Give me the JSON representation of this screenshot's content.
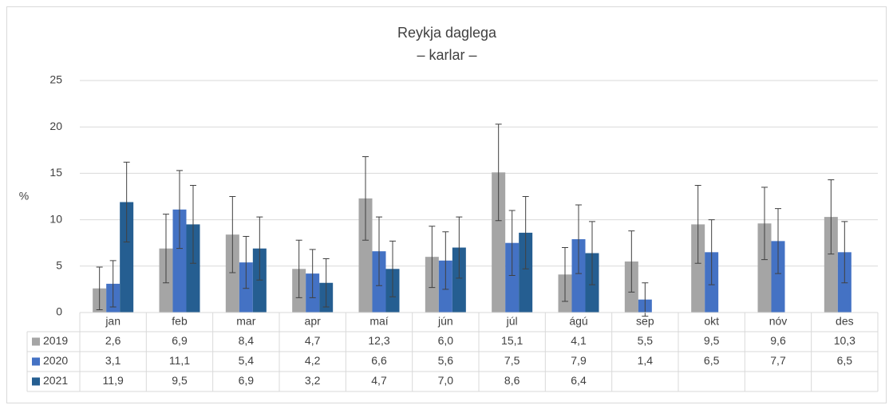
{
  "chart_data": {
    "type": "bar",
    "title": "Reykja daglega",
    "subtitle": "– karlar –",
    "y_label": "%",
    "categories": [
      "jan",
      "feb",
      "mar",
      "apr",
      "maí",
      "jún",
      "júl",
      "ágú",
      "sep",
      "okt",
      "nóv",
      "des"
    ],
    "series": [
      {
        "name": "2019",
        "color": "#a5a5a5",
        "values": [
          2.6,
          6.9,
          8.4,
          4.7,
          12.3,
          6.0,
          15.1,
          4.1,
          5.5,
          9.5,
          9.6,
          10.3
        ],
        "value_labels": [
          "2,6",
          "6,9",
          "8,4",
          "4,7",
          "12,3",
          "6,0",
          "15,1",
          "4,1",
          "5,5",
          "9,5",
          "9,6",
          "10,3"
        ],
        "errors": [
          2.3,
          3.7,
          4.1,
          3.1,
          4.5,
          3.3,
          5.2,
          2.9,
          3.3,
          4.2,
          3.9,
          4.0
        ]
      },
      {
        "name": "2020",
        "color": "#4472c4",
        "values": [
          3.1,
          11.1,
          5.4,
          4.2,
          6.6,
          5.6,
          7.5,
          7.9,
          1.4,
          6.5,
          7.7,
          6.5
        ],
        "value_labels": [
          "3,1",
          "11,1",
          "5,4",
          "4,2",
          "6,6",
          "5,6",
          "7,5",
          "7,9",
          "1,4",
          "6,5",
          "7,7",
          "6,5"
        ],
        "errors": [
          2.5,
          4.2,
          2.8,
          2.6,
          3.7,
          3.1,
          3.5,
          3.7,
          1.8,
          3.5,
          3.5,
          3.3
        ]
      },
      {
        "name": "2021",
        "color": "#255e91",
        "values": [
          11.9,
          9.5,
          6.9,
          3.2,
          4.7,
          7.0,
          8.6,
          6.4,
          null,
          null,
          null,
          null
        ],
        "value_labels": [
          "11,9",
          "9,5",
          "6,9",
          "3,2",
          "4,7",
          "7,0",
          "8,6",
          "6,4",
          null,
          null,
          null,
          null
        ],
        "errors": [
          4.3,
          4.2,
          3.4,
          2.6,
          3.0,
          3.3,
          3.9,
          3.4,
          null,
          null,
          null,
          null
        ]
      }
    ],
    "ylim": [
      0,
      25
    ],
    "yticks": [
      0,
      5,
      10,
      15,
      20,
      25
    ],
    "grid": true
  }
}
